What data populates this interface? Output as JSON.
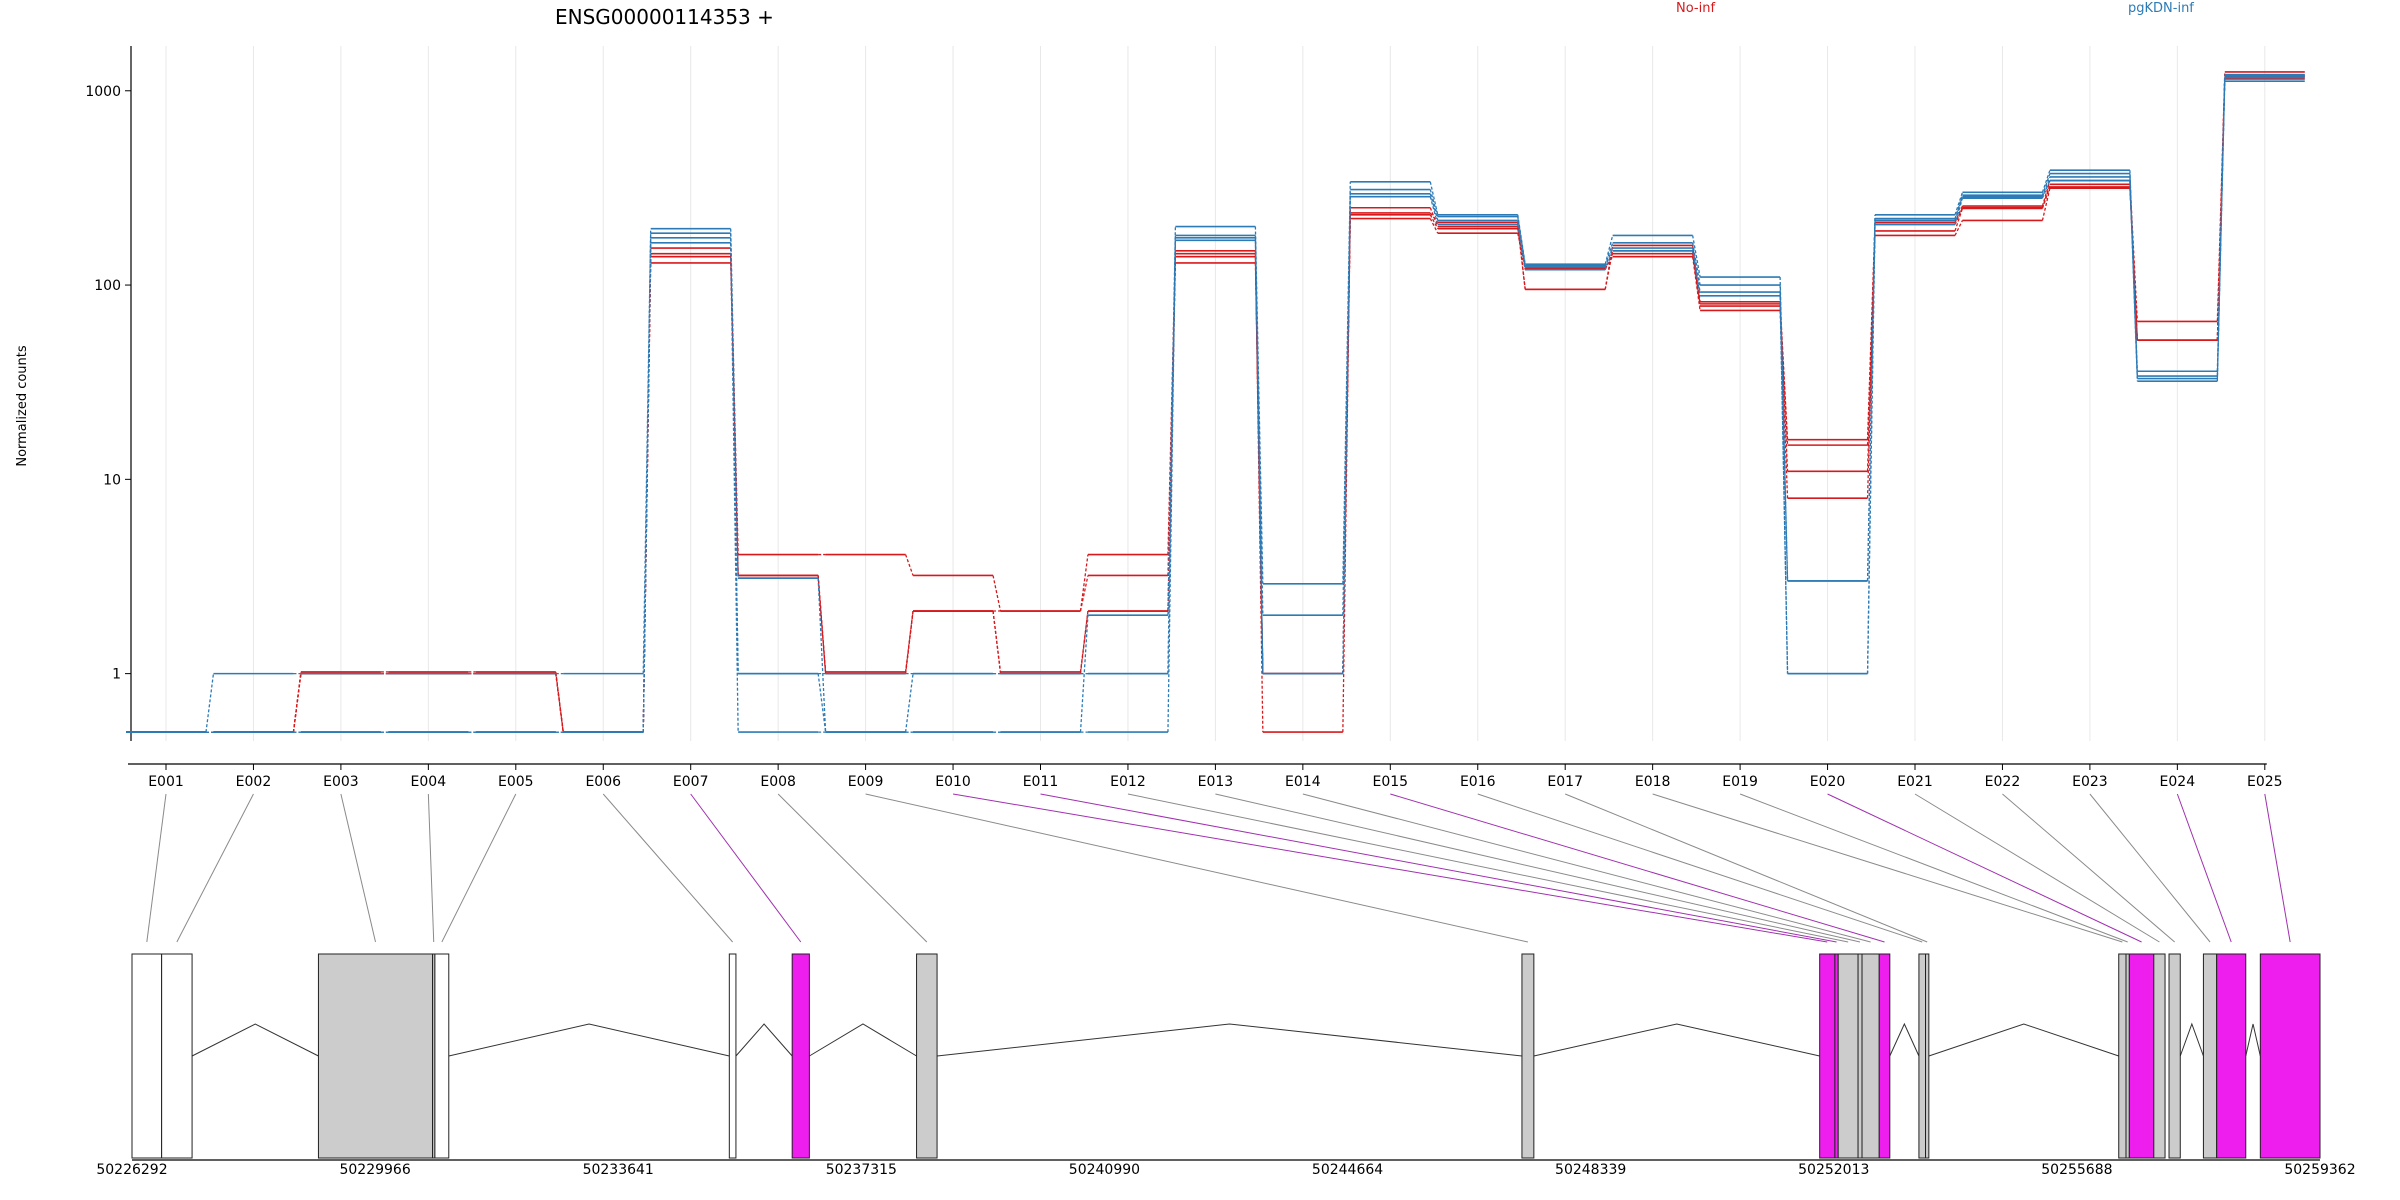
{
  "chart_data": {
    "type": "line",
    "title": "ENSG00000114353 +",
    "ylabel": "Normalized counts",
    "yscale": "log",
    "ylim": [
      0.45,
      1700
    ],
    "yticks": [
      1,
      10,
      100,
      1000
    ],
    "ytick_labels": [
      "1",
      "10",
      "100",
      "1000"
    ],
    "categories": [
      "E001",
      "E002",
      "E003",
      "E004",
      "E005",
      "E006",
      "E007",
      "E008",
      "E009",
      "E010",
      "E011",
      "E012",
      "E013",
      "E014",
      "E015",
      "E016",
      "E017",
      "E018",
      "E019",
      "E020",
      "E021",
      "E022",
      "E023",
      "E024",
      "E025"
    ],
    "legend": [
      {
        "label": "No-inf",
        "color": "#d7191c"
      },
      {
        "label": "pgKDN-inf",
        "color": "#2c7bb6"
      }
    ],
    "series": [
      {
        "group": "No-inf",
        "color": "#d7191c",
        "values": [
          0.5,
          0.5,
          1.02,
          1.02,
          1.02,
          0.5,
          155,
          4.1,
          4.1,
          3.2,
          2.1,
          4.1,
          150,
          0.5,
          250,
          200,
          95,
          160,
          82,
          16,
          210,
          255,
          345,
          65,
          1250
        ]
      },
      {
        "group": "No-inf",
        "color": "#d7191c",
        "values": [
          0.5,
          0.5,
          1.0,
          1.0,
          1.0,
          0.5,
          145,
          3.2,
          1.02,
          2.1,
          2.1,
          3.2,
          140,
          1.0,
          235,
          210,
          95,
          150,
          78,
          15,
          205,
          250,
          330,
          52,
          1200
        ]
      },
      {
        "group": "No-inf",
        "color": "#d7191c",
        "values": [
          0.5,
          0.5,
          1.0,
          1.0,
          1.0,
          0.5,
          140,
          3.2,
          1.0,
          2.1,
          1.02,
          2.1,
          145,
          1.0,
          230,
          195,
          120,
          145,
          80,
          11,
          190,
          248,
          320,
          52,
          1180
        ]
      },
      {
        "group": "No-inf",
        "color": "#d7191c",
        "values": [
          0.5,
          0.5,
          1.0,
          1.0,
          1.0,
          0.5,
          130,
          3.1,
          1.0,
          2.1,
          1.0,
          2.1,
          130,
          1.0,
          220,
          185,
          122,
          140,
          74,
          8,
          180,
          215,
          315,
          52,
          1150
        ]
      },
      {
        "group": "pgKDN-inf",
        "color": "#2c7bb6",
        "values": [
          0.5,
          1.0,
          1.0,
          1.0,
          1.0,
          1.0,
          195,
          3.1,
          0.5,
          0.5,
          0.5,
          2.0,
          200,
          2.9,
          340,
          230,
          128,
          180,
          110,
          3.0,
          230,
          300,
          390,
          36,
          1210
        ]
      },
      {
        "group": "pgKDN-inf",
        "color": "#2c7bb6",
        "values": [
          0.5,
          0.5,
          0.5,
          0.5,
          0.5,
          0.5,
          185,
          1.0,
          0.5,
          1.0,
          1.0,
          1.0,
          180,
          2.0,
          310,
          225,
          126,
          165,
          100,
          3.0,
          220,
          290,
          375,
          34,
          1190
        ]
      },
      {
        "group": "pgKDN-inf",
        "color": "#2c7bb6",
        "values": [
          0.5,
          0.5,
          0.5,
          0.5,
          0.5,
          0.5,
          175,
          1.0,
          1.0,
          1.0,
          1.0,
          1.0,
          175,
          1.0,
          295,
          215,
          124,
          155,
          92,
          1.0,
          215,
          285,
          360,
          33,
          1170
        ]
      },
      {
        "group": "pgKDN-inf",
        "color": "#2c7bb6",
        "values": [
          0.5,
          0.5,
          0.5,
          0.5,
          0.5,
          0.5,
          165,
          0.5,
          0.5,
          0.5,
          0.5,
          0.5,
          170,
          1.0,
          285,
          205,
          120,
          150,
          88,
          1.0,
          205,
          280,
          345,
          32,
          1120
        ]
      }
    ],
    "gene_model": {
      "coordinate_labels": [
        "50226292",
        "50229966",
        "50233641",
        "50237315",
        "50240990",
        "50244664",
        "50248339",
        "50252013",
        "50255688",
        "50259362"
      ],
      "genomic_range": [
        50226292,
        50259362
      ],
      "exons": [
        {
          "id": "E001",
          "start": 50226292,
          "end": 50226740,
          "fill": "#ffffff"
        },
        {
          "id": "E002",
          "start": 50226740,
          "end": 50227200,
          "fill": "#ffffff"
        },
        {
          "id": "E003",
          "start": 50229110,
          "end": 50230835,
          "fill": "#cccccc"
        },
        {
          "id": "E004",
          "start": 50230835,
          "end": 50230870,
          "fill": "#cccccc"
        },
        {
          "id": "E005",
          "start": 50230870,
          "end": 50231080,
          "fill": "#ffffff"
        },
        {
          "id": "E006",
          "start": 50235320,
          "end": 50235420,
          "fill": "#ffffff"
        },
        {
          "id": "E007",
          "start": 50236270,
          "end": 50236530,
          "fill": "#ee1fee"
        },
        {
          "id": "E008",
          "start": 50238150,
          "end": 50238460,
          "fill": "#cccccc"
        },
        {
          "id": "E009",
          "start": 50247300,
          "end": 50247480,
          "fill": "#cccccc"
        },
        {
          "id": "E010",
          "start": 50251800,
          "end": 50252030,
          "fill": "#ee1fee"
        },
        {
          "id": "E011",
          "start": 50252030,
          "end": 50252080,
          "fill": "#ee1fee"
        },
        {
          "id": "E012",
          "start": 50252080,
          "end": 50252380,
          "fill": "#cccccc"
        },
        {
          "id": "E013",
          "start": 50252380,
          "end": 50252440,
          "fill": "#cccccc"
        },
        {
          "id": "E014",
          "start": 50252440,
          "end": 50252700,
          "fill": "#cccccc"
        },
        {
          "id": "E015",
          "start": 50252700,
          "end": 50252860,
          "fill": "#ee1fee"
        },
        {
          "id": "E016",
          "start": 50253300,
          "end": 50253400,
          "fill": "#cccccc"
        },
        {
          "id": "E017",
          "start": 50253400,
          "end": 50253450,
          "fill": "#cccccc"
        },
        {
          "id": "E018",
          "start": 50256320,
          "end": 50256430,
          "fill": "#cccccc"
        },
        {
          "id": "E019",
          "start": 50256430,
          "end": 50256480,
          "fill": "#cccccc"
        },
        {
          "id": "E020",
          "start": 50256480,
          "end": 50256850,
          "fill": "#ee1fee"
        },
        {
          "id": "E021",
          "start": 50256850,
          "end": 50257020,
          "fill": "#cccccc"
        },
        {
          "id": "E022",
          "start": 50257080,
          "end": 50257250,
          "fill": "#cccccc"
        },
        {
          "id": "E023",
          "start": 50257600,
          "end": 50257800,
          "fill": "#cccccc"
        },
        {
          "id": "E024",
          "start": 50257800,
          "end": 50258240,
          "fill": "#ee1fee"
        },
        {
          "id": "E025",
          "start": 50258460,
          "end": 50259362,
          "fill": "#ee1fee"
        }
      ]
    }
  }
}
